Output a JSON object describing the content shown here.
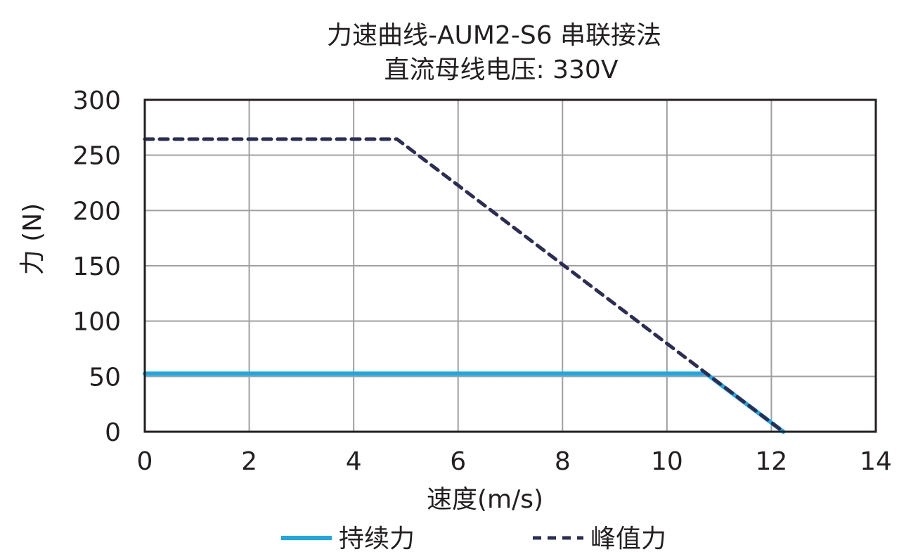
{
  "chart_data": {
    "type": "line",
    "title": [
      "力速曲线-AUM2-S6 串联接法",
      "直流母线电压: 330V"
    ],
    "xlabel": "速度(m/s)",
    "ylabel": "力 (N)",
    "xlim": [
      0,
      14
    ],
    "ylim": [
      0,
      300
    ],
    "xticks": [
      0,
      2,
      4,
      6,
      8,
      10,
      12,
      14
    ],
    "yticks": [
      0,
      50,
      100,
      150,
      200,
      250,
      300
    ],
    "grid": true,
    "legend_position": "bottom",
    "series": [
      {
        "name": "持续力",
        "color": "#1ca8e3",
        "style": "solid",
        "x": [
          0,
          10.75,
          12.23
        ],
        "y": [
          52.5,
          52.5,
          0
        ]
      },
      {
        "name": "峰值力",
        "color": "#2b2d55",
        "style": "dashed",
        "x": [
          0,
          4.83,
          12.23
        ],
        "y": [
          264.5,
          264.5,
          0
        ]
      }
    ]
  }
}
